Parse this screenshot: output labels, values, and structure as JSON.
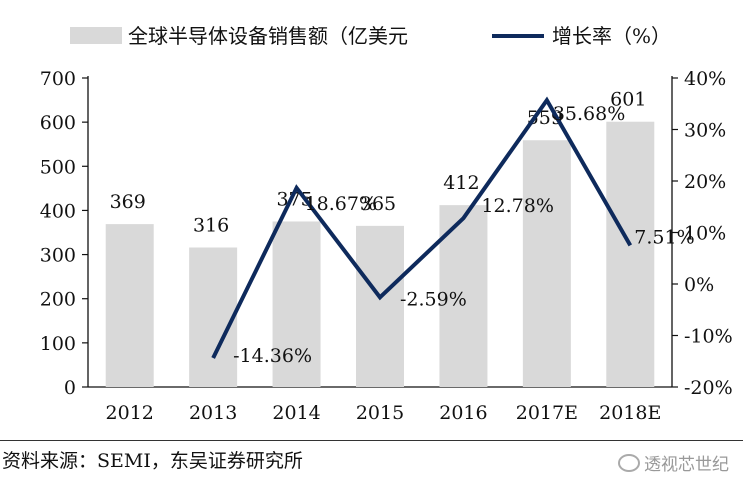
{
  "chart_data": {
    "type": "bar+line",
    "categories": [
      "2012",
      "2013",
      "2014",
      "2015",
      "2016",
      "2017E",
      "2018E"
    ],
    "series": [
      {
        "name": "全球半导体设备销售额（亿美元",
        "type": "bar",
        "axis": "left",
        "color": "#d9d9d9",
        "values": [
          369,
          316,
          375,
          365,
          412,
          559,
          601
        ],
        "labels": [
          "369",
          "316",
          "375",
          "365",
          "412",
          "559",
          "601"
        ]
      },
      {
        "name": "增长率（%）",
        "type": "line",
        "axis": "right",
        "color": "#0e2a5c",
        "values": [
          null,
          -14.36,
          18.67,
          -2.59,
          12.78,
          35.68,
          7.51
        ],
        "labels": [
          "",
          "-14.36%",
          "18.67%",
          "-2.59%",
          "12.78%",
          "35.68%",
          "7.51%"
        ]
      }
    ],
    "left_axis": {
      "ylim": [
        0,
        700
      ],
      "ticks": [
        "0",
        "100",
        "200",
        "300",
        "400",
        "500",
        "600",
        "700"
      ]
    },
    "right_axis": {
      "ylim": [
        -20,
        40
      ],
      "ticks": [
        "-20%",
        "-10%",
        "0%",
        "10%",
        "20%",
        "30%",
        "40%"
      ]
    },
    "legend_position": "top",
    "grid": false
  },
  "footer": {
    "source": "资料来源：SEMI，东吴证券研究所",
    "watermark": "透视芯世纪"
  }
}
